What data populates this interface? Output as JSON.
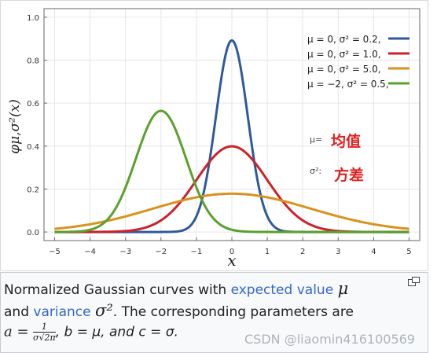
{
  "chart_data": {
    "type": "line",
    "xlabel": "x",
    "ylabel": "φμ,σ²(x)",
    "xlim": [
      -5,
      5
    ],
    "ylim": [
      0,
      1.0
    ],
    "x_ticks": [
      "−5",
      "−4",
      "−3",
      "−2",
      "−1",
      "0",
      "1",
      "2",
      "3",
      "4",
      "5"
    ],
    "y_ticks": [
      "0.0",
      "0.2",
      "0.4",
      "0.6",
      "0.8",
      "1.0"
    ],
    "grid": true,
    "legend_position": "top-right",
    "series": [
      {
        "name": "μ = 0,  σ² = 0.2,",
        "mu": 0,
        "variance": 0.2,
        "color": "#2e5a9c"
      },
      {
        "name": "μ = 0,  σ² = 1.0,",
        "mu": 0,
        "variance": 1.0,
        "color": "#cc2229"
      },
      {
        "name": "μ = 0,  σ² = 5.0,",
        "mu": 0,
        "variance": 5.0,
        "color": "#d9921e"
      },
      {
        "name": "μ = −2, σ² = 0.5,",
        "mu": -2,
        "variance": 0.5,
        "color": "#5aa02c"
      }
    ]
  },
  "annotations": {
    "mu_symbol": "μ=",
    "mu_text": "均值",
    "sigma_symbol": "σ²:",
    "sigma_text": "方差"
  },
  "caption": {
    "line1_prefix": "Normalized Gaussian curves with ",
    "expected_value_link": "expected value",
    "line1_symbol": "μ",
    "line2_prefix": "and ",
    "variance_link": "variance",
    "line2_symbol": "σ²",
    "line2_suffix": ". The corresponding parameters are",
    "a_label": "a =",
    "a_num": "1",
    "a_den": "σ√2π",
    "b_part": ", b = μ, and c = σ."
  },
  "watermark": "CSDN @liaomin416100569",
  "icons": {
    "enlarge": "enlarge-icon"
  }
}
